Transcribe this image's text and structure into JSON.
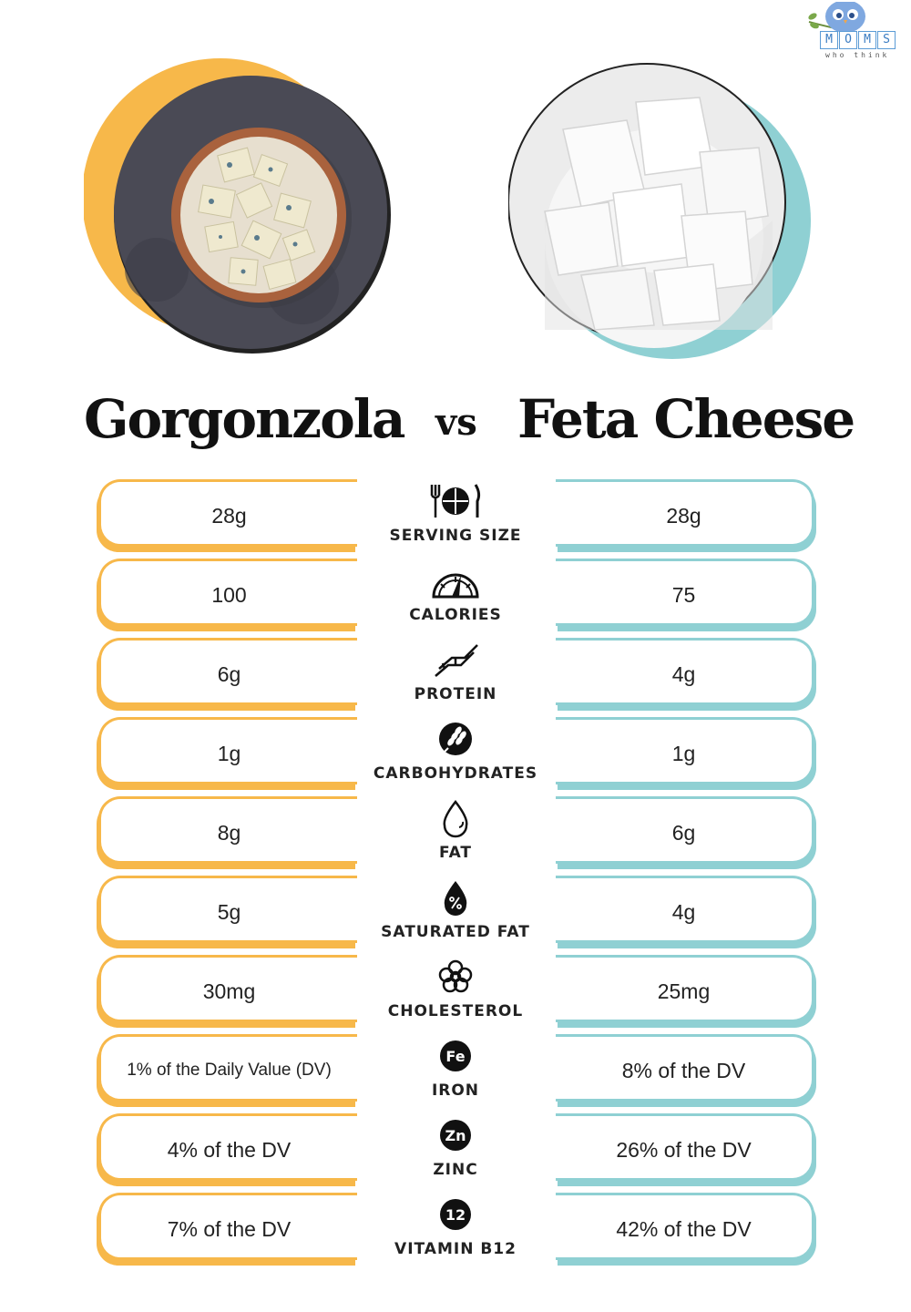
{
  "brand": {
    "letters": [
      "M",
      "O",
      "M",
      "S"
    ],
    "tagline": "who think"
  },
  "colors": {
    "left_accent": "#f7b84a",
    "right_accent": "#8fd0d3",
    "text": "#222222"
  },
  "title": {
    "left": "Gorgonzola",
    "vs": "vs",
    "right": "Feta Cheese"
  },
  "rows": [
    {
      "label": "SERVING SIZE",
      "icon": "plate-fork-knife-icon",
      "left": "28g",
      "right": "28g"
    },
    {
      "label": "CALORIES",
      "icon": "gauge-icon",
      "left": "100",
      "right": "75"
    },
    {
      "label": "PROTEIN",
      "icon": "protein-helix-icon",
      "left": "6g",
      "right": "4g"
    },
    {
      "label": "CARBOHYDRATES",
      "icon": "wheat-icon",
      "left": "1g",
      "right": "1g"
    },
    {
      "label": "FAT",
      "icon": "drop-icon",
      "left": "8g",
      "right": "6g"
    },
    {
      "label": "SATURATED FAT",
      "icon": "drop-percent-icon",
      "left": "5g",
      "right": "4g"
    },
    {
      "label": "CHOLESTEROL",
      "icon": "cholesterol-icon",
      "left": "30mg",
      "right": "25mg"
    },
    {
      "label": "IRON",
      "icon": "iron-icon",
      "icon_text": "Fe",
      "left": "1% of the Daily Value (DV)",
      "right": "8% of the DV"
    },
    {
      "label": "ZINC",
      "icon": "zinc-icon",
      "icon_text": "Zn",
      "left": "4% of the DV",
      "right": "26% of the DV"
    },
    {
      "label": "VITAMIN B12",
      "icon": "vitamin-b12-icon",
      "icon_text": "12",
      "left": "7% of the DV",
      "right": "42% of the DV"
    }
  ]
}
